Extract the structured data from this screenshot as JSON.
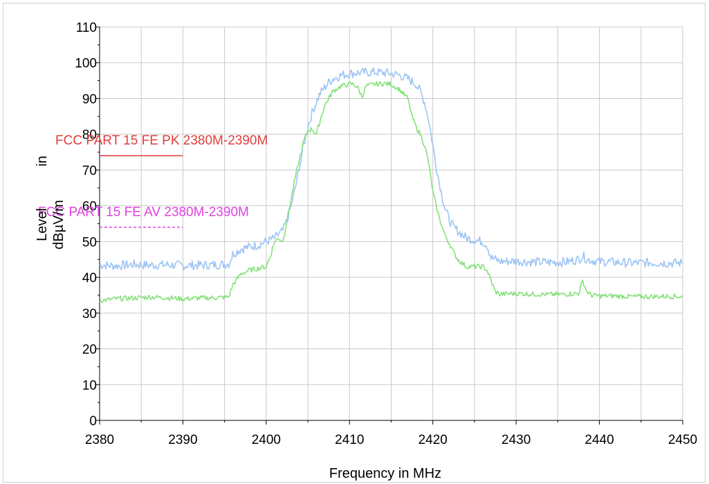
{
  "chart_data": {
    "type": "line",
    "title": "",
    "xlabel": "Frequency in MHz",
    "ylabel_lines": [
      "Level",
      "dBµV/m",
      "in"
    ],
    "xlim": [
      2380,
      2450
    ],
    "ylim": [
      0,
      110
    ],
    "x_ticks": [
      2380,
      2390,
      2400,
      2410,
      2420,
      2430,
      2440,
      2450
    ],
    "y_ticks": [
      0,
      10,
      20,
      30,
      40,
      50,
      60,
      70,
      80,
      90,
      100,
      110
    ],
    "grid": true,
    "limit_lines": [
      {
        "label": "FCC PART 15 FE PK 2380M-2390M",
        "y": 74,
        "x": [
          2380,
          2390
        ],
        "color": "#e03c3c",
        "dash": false
      },
      {
        "label": "FCC PART 15 FE AV 2380M-2390M",
        "y": 54,
        "x": [
          2380,
          2390
        ],
        "color": "#e040e0",
        "dash": true
      }
    ],
    "series": [
      {
        "color": "#9cc4f4",
        "x": [
          2380,
          2382,
          2384,
          2386,
          2388,
          2390,
          2392,
          2394,
          2395.5,
          2396,
          2397,
          2398,
          2399,
          2400,
          2401,
          2402,
          2402.5,
          2403,
          2403.5,
          2404,
          2404.5,
          2405,
          2405.5,
          2406,
          2406.5,
          2407,
          2407.5,
          2408,
          2409,
          2410,
          2411,
          2412,
          2413,
          2414,
          2415,
          2416,
          2417,
          2418,
          2418.5,
          2419,
          2419.5,
          2420,
          2420.5,
          2421,
          2421.5,
          2422,
          2422.5,
          2423,
          2424,
          2425,
          2426,
          2426.5,
          2427,
          2428,
          2430,
          2432,
          2434,
          2436,
          2437.5,
          2438,
          2438.5,
          2440,
          2442,
          2444,
          2446,
          2448,
          2450
        ],
        "y": [
          43.5,
          43.2,
          43.6,
          43.4,
          43.5,
          43.3,
          43.4,
          43.5,
          43.8,
          46.5,
          48,
          48.5,
          49,
          50,
          51,
          53,
          56,
          60,
          65,
          71,
          77,
          82,
          86,
          89,
          91.5,
          93,
          94.5,
          95.5,
          96.5,
          97,
          97.2,
          97.3,
          97.4,
          97.2,
          97,
          96.5,
          95.5,
          94,
          92,
          89,
          84,
          77,
          70,
          64,
          59,
          56,
          54,
          53,
          51,
          50.5,
          50,
          49,
          45.5,
          44.5,
          44.5,
          44.3,
          44.2,
          44.3,
          45,
          46,
          45,
          44.4,
          44.2,
          44,
          44.1,
          44,
          44
        ]
      },
      {
        "color": "#86e07a",
        "x": [
          2380,
          2382,
          2384,
          2386,
          2388,
          2390,
          2392,
          2394,
          2395.5,
          2396,
          2397,
          2398,
          2399,
          2400,
          2400.5,
          2401,
          2401.5,
          2402,
          2402.5,
          2403,
          2403.5,
          2404,
          2404.5,
          2405,
          2405.5,
          2406,
          2406.5,
          2407,
          2407.5,
          2408,
          2409,
          2410,
          2410.5,
          2411,
          2411.5,
          2412,
          2413,
          2414,
          2415,
          2416,
          2417,
          2417.5,
          2418,
          2418.5,
          2419,
          2419.5,
          2420,
          2420.5,
          2421,
          2421.5,
          2422,
          2422.5,
          2423,
          2424,
          2425,
          2426,
          2426.5,
          2427,
          2427.5,
          2428,
          2430,
          2432,
          2434,
          2436,
          2437.5,
          2438,
          2438.5,
          2439,
          2440,
          2442,
          2444,
          2446,
          2448,
          2450
        ],
        "y": [
          33.5,
          34,
          34.2,
          34.5,
          34.3,
          34,
          34.2,
          34.3,
          34.5,
          38,
          41,
          42,
          42.5,
          43,
          46,
          50,
          51,
          50,
          56,
          62,
          68,
          73,
          78,
          81,
          81.5,
          80,
          84,
          88,
          90,
          92,
          93.5,
          94,
          94,
          93,
          90.5,
          93.5,
          94,
          94.2,
          94,
          92.5,
          90,
          85,
          82,
          80,
          77,
          72,
          64,
          59,
          55,
          51.5,
          49.5,
          47,
          45,
          43,
          43,
          43,
          42,
          39,
          36,
          35.3,
          35.5,
          35.3,
          35.2,
          35.3,
          35.5,
          39,
          36,
          35,
          34.8,
          34.8,
          34.6,
          34.6,
          34.7,
          34.6
        ]
      }
    ]
  }
}
